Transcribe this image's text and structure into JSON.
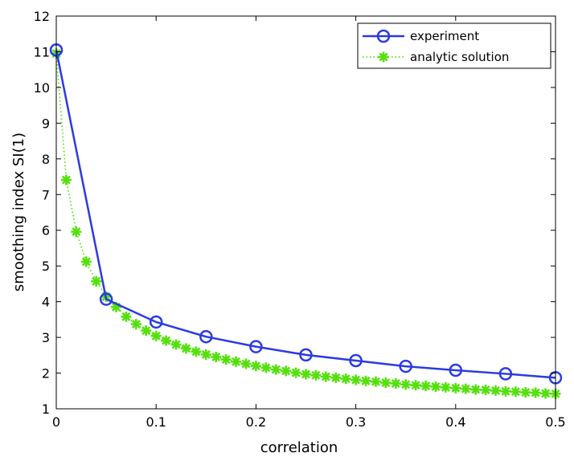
{
  "chart_data": {
    "type": "line",
    "title": "",
    "xlabel": "correlation",
    "ylabel": "smoothing index SI(1)",
    "xlim": [
      0,
      0.5
    ],
    "ylim": [
      1,
      12
    ],
    "xticks": [
      0,
      0.1,
      0.2,
      0.3,
      0.4,
      0.5
    ],
    "xtick_labels": [
      "0",
      "0.1",
      "0.2",
      "0.3",
      "0.4",
      "0.5"
    ],
    "yticks": [
      1,
      2,
      3,
      4,
      5,
      6,
      7,
      8,
      9,
      10,
      11,
      12
    ],
    "ytick_labels": [
      "1",
      "2",
      "3",
      "4",
      "5",
      "6",
      "7",
      "8",
      "9",
      "10",
      "11",
      "12"
    ],
    "grid": false,
    "legend_position": "top-right",
    "series": [
      {
        "name": "experiment",
        "color": "#2b3be0",
        "line_style": "solid",
        "marker": "circle",
        "x": [
          0,
          0.05,
          0.1,
          0.15,
          0.2,
          0.25,
          0.3,
          0.35,
          0.4,
          0.45,
          0.5
        ],
        "y": [
          11.05,
          4.07,
          3.43,
          3.02,
          2.74,
          2.51,
          2.35,
          2.19,
          2.08,
          1.98,
          1.87
        ]
      },
      {
        "name": "analytic solution",
        "color": "#55e00e",
        "line_style": "dotted",
        "marker": "asterisk",
        "x": [
          0,
          0.01,
          0.02,
          0.03,
          0.04,
          0.05,
          0.06,
          0.07,
          0.08,
          0.09,
          0.1,
          0.11,
          0.12,
          0.13,
          0.14,
          0.15,
          0.16,
          0.17,
          0.18,
          0.19,
          0.2,
          0.21,
          0.22,
          0.23,
          0.24,
          0.25,
          0.26,
          0.27,
          0.28,
          0.29,
          0.3,
          0.31,
          0.32,
          0.33,
          0.34,
          0.35,
          0.36,
          0.37,
          0.38,
          0.39,
          0.4,
          0.41,
          0.42,
          0.43,
          0.44,
          0.45,
          0.46,
          0.47,
          0.48,
          0.49,
          0.5
        ],
        "y": [
          10.95,
          7.41,
          5.96,
          5.12,
          4.57,
          4.14,
          3.85,
          3.58,
          3.37,
          3.19,
          3.04,
          2.91,
          2.8,
          2.69,
          2.6,
          2.52,
          2.45,
          2.38,
          2.32,
          2.26,
          2.2,
          2.15,
          2.1,
          2.06,
          2.01,
          1.97,
          1.94,
          1.9,
          1.87,
          1.84,
          1.81,
          1.78,
          1.76,
          1.73,
          1.71,
          1.68,
          1.66,
          1.64,
          1.62,
          1.6,
          1.58,
          1.56,
          1.54,
          1.53,
          1.51,
          1.49,
          1.48,
          1.46,
          1.45,
          1.43,
          1.42
        ]
      }
    ]
  }
}
